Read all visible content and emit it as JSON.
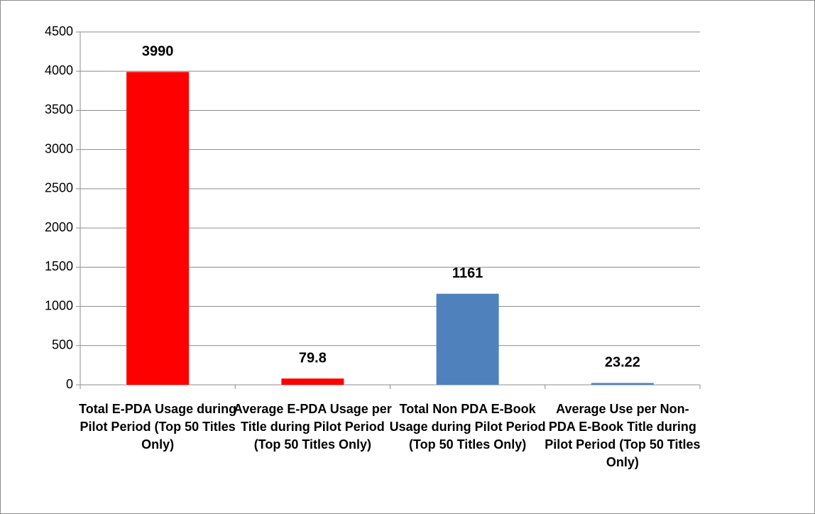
{
  "chart_data": {
    "type": "bar",
    "categories": [
      "Total E-PDA Usage during Pilot Period (Top 50 Titles Only)",
      "Average E-PDA Usage per Title during Pilot Period (Top 50 Titles Only)",
      "Total Non PDA E-Book Usage during Pilot Period (Top 50 Titles Only)",
      "Average Use per Non-PDA E-Book Title during Pilot Period (Top 50 Titles Only)"
    ],
    "values": [
      3990,
      79.8,
      1161,
      23.22
    ],
    "colors": [
      "#ff0000",
      "#ff0000",
      "#4f81bd",
      "#4f81bd"
    ],
    "ylim": [
      0,
      4500
    ],
    "yticks": [
      0,
      500,
      1000,
      1500,
      2000,
      2500,
      3000,
      3500,
      4000,
      4500
    ],
    "grid": true
  }
}
